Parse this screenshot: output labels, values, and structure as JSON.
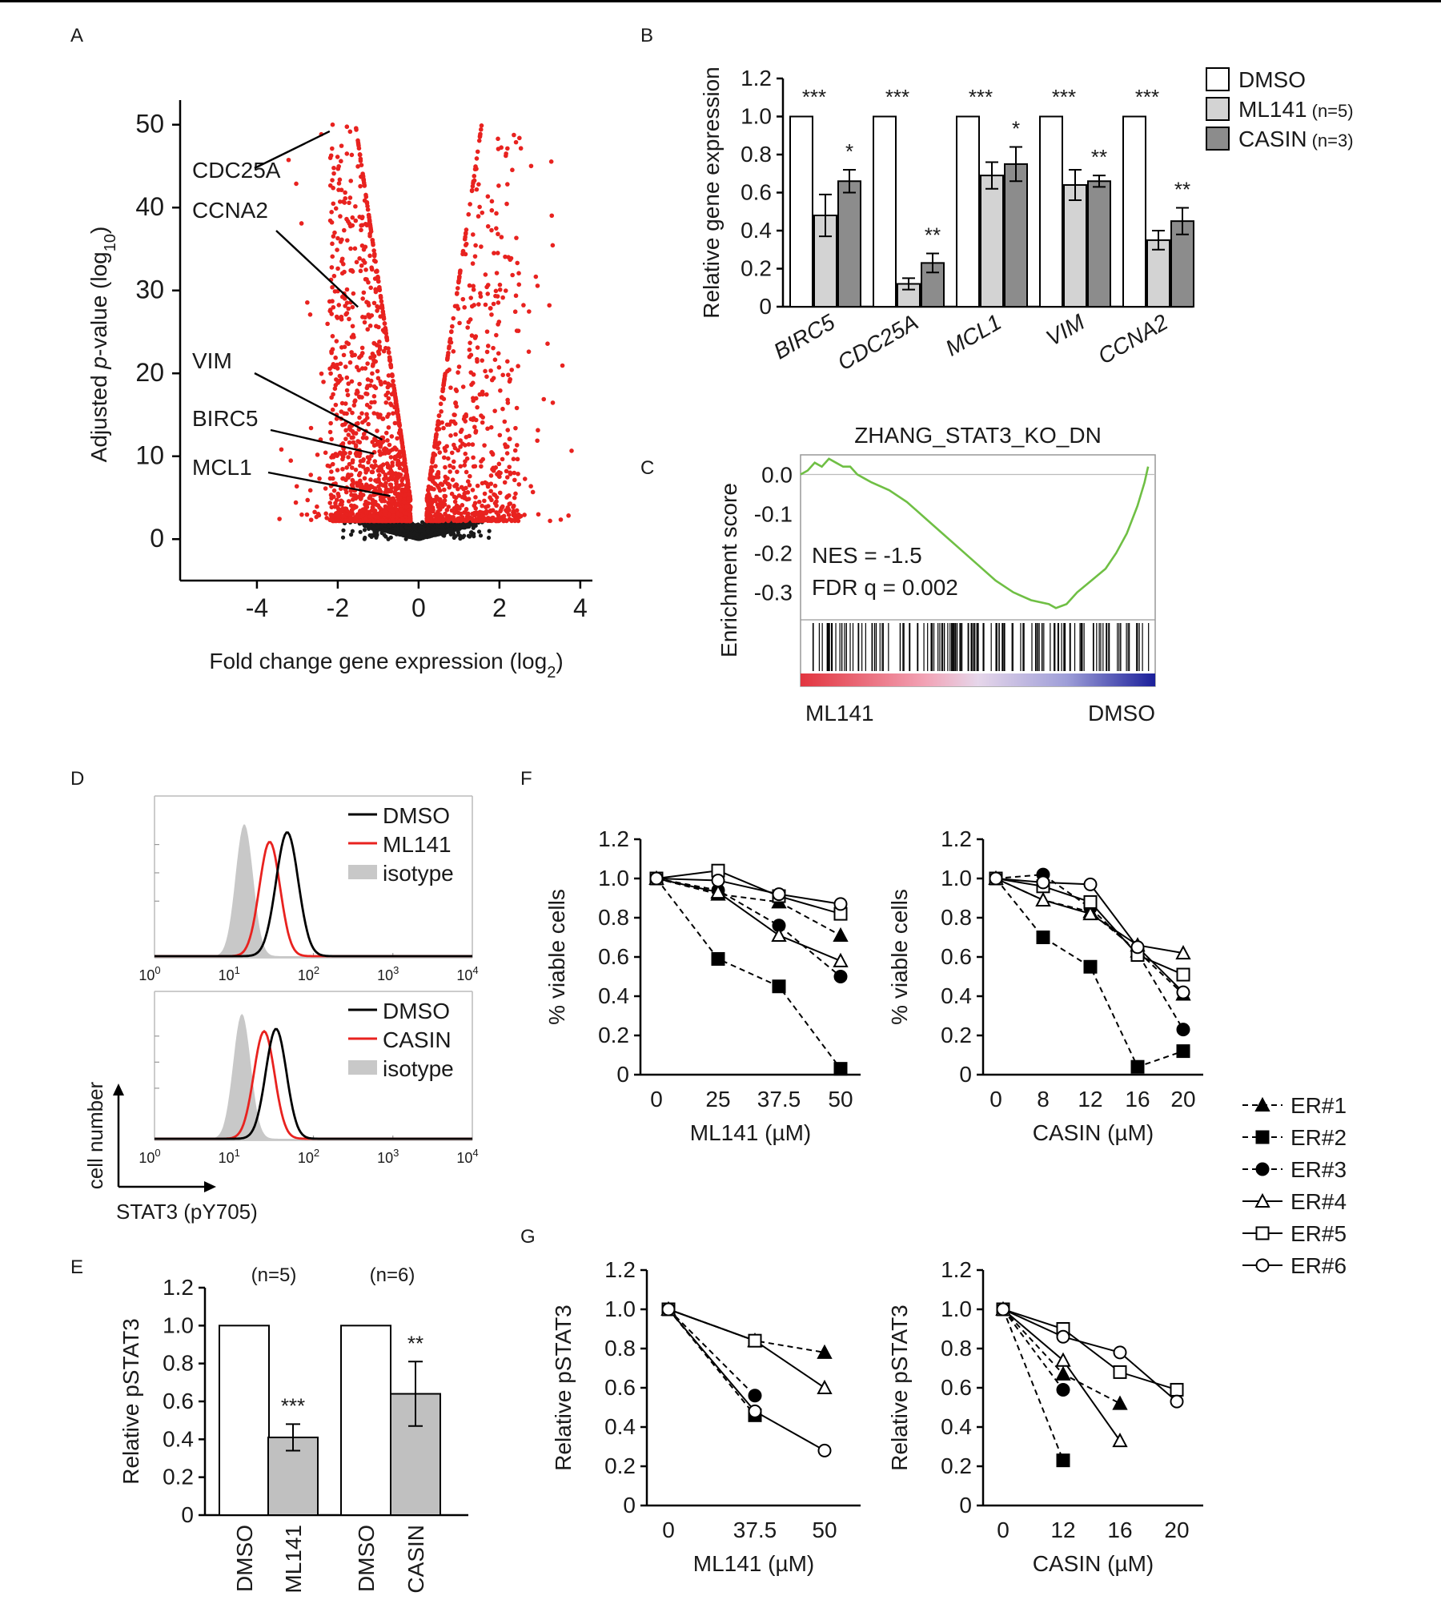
{
  "panels": {
    "a": "A",
    "b": "B",
    "c": "C",
    "d": "D",
    "e": "E",
    "f": "F",
    "g": "G"
  },
  "chart_data": [
    {
      "id": "A",
      "type": "scatter",
      "xlabel": "Fold change gene expression (log",
      "xlabel_sub": "2",
      "xlabel_end": ")",
      "ylabel_pre": "Adjusted ",
      "ylabel_ital": "p",
      "ylabel_mid": "-value (log",
      "ylabel_sub": "10",
      "ylabel_end": ")",
      "xlim": [
        -5.9,
        4.3
      ],
      "ylim": [
        -5,
        52
      ],
      "xticks": [
        -4,
        -2,
        0,
        2,
        4
      ],
      "yticks": [
        0,
        10,
        20,
        30,
        40,
        50
      ],
      "colors": {
        "significant": "#e8221f",
        "nonsignificant": "#1a1a1a"
      },
      "annotations": [
        {
          "label": "CDC25A",
          "x": -2.2,
          "y": 49.2
        },
        {
          "label": "CCNA2",
          "x": -1.5,
          "y": 28
        },
        {
          "label": "VIM",
          "x": -0.9,
          "y": 12
        },
        {
          "label": "BIRC5",
          "x": -1.1,
          "y": 10.3
        },
        {
          "label": "MCL1",
          "x": -0.7,
          "y": 5.2
        }
      ]
    },
    {
      "id": "B",
      "type": "bar",
      "ylabel": "Relative gene expression",
      "ylim": [
        0,
        1.2
      ],
      "yticks": [
        "0",
        "0.2",
        "0.4",
        "0.6",
        "0.8",
        "1.0",
        "1.2"
      ],
      "categories": [
        "BIRC5",
        "CDC25A",
        "MCL1",
        "VIM",
        "CCNA2"
      ],
      "series": [
        {
          "name": "DMSO",
          "values": [
            1.0,
            1.0,
            1.0,
            1.0,
            1.0
          ],
          "color": "#ffffff"
        },
        {
          "name": "ML141",
          "n": "(n=5)",
          "values": [
            0.48,
            0.12,
            0.69,
            0.64,
            0.35
          ],
          "errors": [
            0.11,
            0.03,
            0.07,
            0.08,
            0.05
          ],
          "color": "#d3d3d3"
        },
        {
          "name": "CASIN",
          "n": "(n=3)",
          "values": [
            0.66,
            0.23,
            0.75,
            0.66,
            0.45
          ],
          "errors": [
            0.06,
            0.05,
            0.09,
            0.03,
            0.07
          ],
          "color": "#8c8c8c"
        }
      ],
      "significance": [
        {
          "top": "***",
          "right": "*"
        },
        {
          "top": "***",
          "right": "**"
        },
        {
          "top": "***",
          "right": "*"
        },
        {
          "top": "***",
          "right": "**"
        },
        {
          "top": "***",
          "right": "**"
        }
      ]
    },
    {
      "id": "C",
      "type": "line",
      "title": "ZHANG_STAT3_KO_DN",
      "ylabel": "Enrichment  score",
      "yticks": [
        "0.0",
        "-0.1",
        "-0.2",
        "-0.3"
      ],
      "ylim": [
        -0.37,
        0.05
      ],
      "stats": [
        "NES = -1.5",
        "FDR q = 0.002"
      ],
      "left_label": "ML141",
      "right_label": "DMSO",
      "curve_color": "#6fbf44",
      "curve": [
        [
          0,
          0
        ],
        [
          2,
          0.01
        ],
        [
          4,
          0.03
        ],
        [
          6,
          0.02
        ],
        [
          8,
          0.04
        ],
        [
          10,
          0.03
        ],
        [
          12,
          0.02
        ],
        [
          14,
          0.02
        ],
        [
          16,
          0.0
        ],
        [
          18,
          -0.01
        ],
        [
          20,
          -0.02
        ],
        [
          25,
          -0.04
        ],
        [
          30,
          -0.07
        ],
        [
          35,
          -0.11
        ],
        [
          40,
          -0.15
        ],
        [
          45,
          -0.19
        ],
        [
          50,
          -0.23
        ],
        [
          55,
          -0.27
        ],
        [
          60,
          -0.3
        ],
        [
          65,
          -0.32
        ],
        [
          70,
          -0.33
        ],
        [
          72,
          -0.34
        ],
        [
          75,
          -0.33
        ],
        [
          78,
          -0.3
        ],
        [
          82,
          -0.27
        ],
        [
          86,
          -0.24
        ],
        [
          89,
          -0.2
        ],
        [
          92,
          -0.15
        ],
        [
          95,
          -0.08
        ],
        [
          97,
          -0.02
        ],
        [
          98,
          0.02
        ]
      ]
    },
    {
      "id": "D",
      "type": "area",
      "xticks": [
        "10",
        "10",
        "10",
        "10",
        "10"
      ],
      "xtick_exps": [
        "0",
        "1",
        "2",
        "3",
        "4"
      ],
      "ylabel": "cell number",
      "xlabel": "STAT3 (pY705)",
      "histograms": [
        {
          "legend": [
            "DMSO",
            "ML141",
            "isotype"
          ],
          "peaks": [
            {
              "name": "DMSO",
              "mu": 1.67,
              "sigma": 0.14,
              "h": 0.9,
              "color": "#000000"
            },
            {
              "name": "ML141",
              "mu": 1.45,
              "sigma": 0.13,
              "h": 0.83,
              "color": "#e8221f"
            },
            {
              "name": "isotype",
              "mu": 1.13,
              "sigma": 0.11,
              "h": 0.96,
              "color": "#c8c8c8"
            }
          ]
        },
        {
          "legend": [
            "DMSO",
            "CASIN",
            "isotype"
          ],
          "peaks": [
            {
              "name": "DMSO",
              "mu": 1.53,
              "sigma": 0.13,
              "h": 0.88,
              "color": "#000000"
            },
            {
              "name": "CASIN",
              "mu": 1.38,
              "sigma": 0.13,
              "h": 0.86,
              "color": "#e8221f"
            },
            {
              "name": "isotype",
              "mu": 1.1,
              "sigma": 0.11,
              "h": 1.0,
              "color": "#c8c8c8"
            }
          ]
        }
      ]
    },
    {
      "id": "E",
      "type": "bar",
      "ylabel": "Relative pSTAT3",
      "ylim": [
        0,
        1.2
      ],
      "yticks": [
        "0",
        "0.2",
        "0.4",
        "0.6",
        "0.8",
        "1.0",
        "1.2"
      ],
      "categories": [
        "DMSO",
        "ML141",
        "DMSO",
        "CASIN"
      ],
      "values": [
        1.0,
        0.41,
        1.0,
        0.64
      ],
      "errors": [
        0,
        0.07,
        0,
        0.17
      ],
      "colors": [
        "#ffffff",
        "#c0c0c0",
        "#ffffff",
        "#c0c0c0"
      ],
      "group_n": [
        "(n=5)",
        "(n=6)"
      ],
      "significance": [
        "",
        "***",
        "",
        "**"
      ]
    },
    {
      "id": "F1",
      "type": "line",
      "ylabel": "% viable cells",
      "xlabel": "ML141 (µM)",
      "ylim": [
        0,
        1.2
      ],
      "yticks": [
        "0",
        "0.2",
        "0.4",
        "0.6",
        "0.8",
        "1.0",
        "1.2"
      ],
      "xticks": [
        "0",
        "25",
        "37.5",
        "50"
      ],
      "series": [
        {
          "name": "ER#1",
          "values": [
            1.0,
            0.92,
            0.88,
            0.71
          ]
        },
        {
          "name": "ER#2",
          "values": [
            1.0,
            0.59,
            0.45,
            0.03
          ]
        },
        {
          "name": "ER#3",
          "values": [
            1.0,
            0.94,
            0.76,
            0.5
          ]
        },
        {
          "name": "ER#4",
          "values": [
            1.0,
            0.93,
            0.71,
            0.58
          ]
        },
        {
          "name": "ER#5",
          "values": [
            1.0,
            1.04,
            0.91,
            0.82
          ]
        },
        {
          "name": "ER#6",
          "values": [
            1.0,
            0.99,
            0.92,
            0.87
          ]
        }
      ]
    },
    {
      "id": "F2",
      "type": "line",
      "ylabel": "% viable cells",
      "xlabel": "CASIN (µM)",
      "ylim": [
        0,
        1.2
      ],
      "yticks": [
        "0",
        "0.2",
        "0.4",
        "0.6",
        "0.8",
        "1.0",
        "1.2"
      ],
      "xticks": [
        "0",
        "8",
        "12",
        "16",
        "20"
      ],
      "series": [
        {
          "name": "ER#1",
          "values": [
            1.0,
            0.89,
            0.83,
            0.63,
            0.41
          ]
        },
        {
          "name": "ER#2",
          "values": [
            1.0,
            0.7,
            0.55,
            0.04,
            0.12
          ]
        },
        {
          "name": "ER#3",
          "values": [
            1.0,
            1.02,
            0.85,
            0.62,
            0.23
          ]
        },
        {
          "name": "ER#4",
          "values": [
            1.0,
            0.89,
            0.82,
            0.66,
            0.62
          ]
        },
        {
          "name": "ER#5",
          "values": [
            1.0,
            0.96,
            0.88,
            0.61,
            0.51
          ]
        },
        {
          "name": "ER#6",
          "values": [
            1.0,
            0.98,
            0.97,
            0.65,
            0.42
          ]
        }
      ]
    },
    {
      "id": "G1",
      "type": "line",
      "ylabel": "Relative pSTAT3",
      "xlabel": "ML141 (µM)",
      "ylim": [
        0,
        1.2
      ],
      "yticks": [
        "0",
        "0.2",
        "0.4",
        "0.6",
        "0.8",
        "1.0",
        "1.2"
      ],
      "xticks": [
        "0",
        "37.5",
        "50"
      ],
      "series": [
        {
          "name": "ER#1",
          "values": [
            1.0,
            0.84,
            0.78
          ]
        },
        {
          "name": "ER#2",
          "values": [
            1.0,
            0.46,
            null
          ]
        },
        {
          "name": "ER#3",
          "values": [
            1.0,
            0.56,
            null
          ]
        },
        {
          "name": "ER#4",
          "values": [
            1.0,
            0.84,
            0.6
          ]
        },
        {
          "name": "ER#5",
          "values": [
            1.0,
            0.84,
            null
          ]
        },
        {
          "name": "ER#6",
          "values": [
            1.0,
            0.48,
            0.28
          ]
        }
      ]
    },
    {
      "id": "G2",
      "type": "line",
      "ylabel": "Relative pSTAT3",
      "xlabel": "CASIN (µM)",
      "ylim": [
        0,
        1.2
      ],
      "yticks": [
        "0",
        "0.2",
        "0.4",
        "0.6",
        "0.8",
        "1.0",
        "1.2"
      ],
      "xticks": [
        "0",
        "12",
        "16",
        "20"
      ],
      "series": [
        {
          "name": "ER#1",
          "values": [
            1.0,
            0.67,
            0.52,
            null
          ]
        },
        {
          "name": "ER#2",
          "values": [
            1.0,
            0.23,
            null,
            null
          ]
        },
        {
          "name": "ER#3",
          "values": [
            1.0,
            0.59,
            null,
            null
          ]
        },
        {
          "name": "ER#4",
          "values": [
            1.0,
            0.74,
            0.33,
            null
          ]
        },
        {
          "name": "ER#5",
          "values": [
            1.0,
            0.9,
            0.68,
            0.59
          ]
        },
        {
          "name": "ER#6",
          "values": [
            1.0,
            0.86,
            0.78,
            0.53
          ]
        }
      ]
    }
  ],
  "legend_fg": [
    {
      "label": "ER#1",
      "marker": "triangle",
      "filled": true,
      "dashed": true
    },
    {
      "label": "ER#2",
      "marker": "square",
      "filled": true,
      "dashed": true
    },
    {
      "label": "ER#3",
      "marker": "circle",
      "filled": true,
      "dashed": true
    },
    {
      "label": "ER#4",
      "marker": "triangle",
      "filled": false,
      "dashed": false
    },
    {
      "label": "ER#5",
      "marker": "square",
      "filled": false,
      "dashed": false
    },
    {
      "label": "ER#6",
      "marker": "circle",
      "filled": false,
      "dashed": false
    }
  ]
}
